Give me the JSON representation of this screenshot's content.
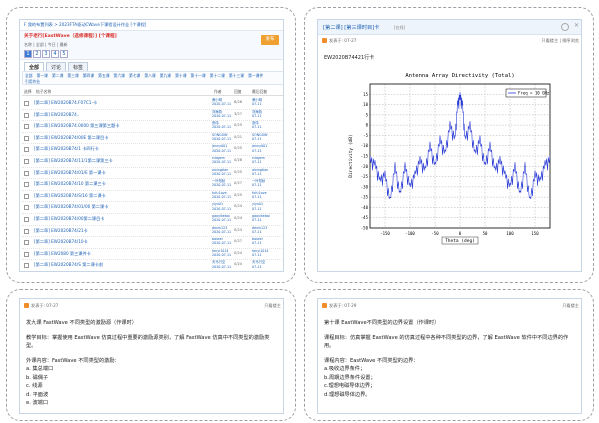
{
  "left_panel": {
    "breadcrumb": "F  我的布置列表 > 2023FTA驱动CWave下课程设计作业 [个课程]",
    "title": "关于老行[EastWave（选修课程）] [个课程]",
    "meta_line": "名称  |  全部  |  今日  |  最新",
    "pages": [
      "1",
      "2",
      "3",
      "4",
      "5"
    ],
    "publish_button": "发布",
    "tabs": [
      "全部",
      "讨论",
      "标签"
    ],
    "subtabs": [
      "全部",
      "第一课",
      "第二课",
      "第三课",
      "第四课",
      "第五课",
      "第六课",
      "第七课",
      "第八课",
      "第九课",
      "第十课",
      "第十一课",
      "第十二课",
      "第十三课",
      "第一课件",
      "引用作业"
    ],
    "columns": [
      "选择",
      "帖子名称",
      "作者",
      "回复",
      "最后回复"
    ],
    "rows": [
      {
        "title": "[第二章] EW2020B74.F07C1-卡",
        "author": "黄小明\n2020-07-11",
        "replies": "6/26",
        "last": "黄小明\n07-11"
      },
      {
        "title": "[第二章] EW2020B74..",
        "author": "刘海燕\n2020-07-11",
        "replies": "3/27",
        "last": "刘海燕\n07-11"
      },
      {
        "title": "[第二章] EW2020B74.0000 第三课第三题卡",
        "author": "张伟\n2020-07-11",
        "replies": "0/25",
        "last": "张伟\n07-11"
      },
      {
        "title": "[第二章] EW2020B74/00E 第二课目卡",
        "author": "SONGXIN\n2020-07-11",
        "replies": "0/21",
        "last": "SONGXIN\n07-11"
      },
      {
        "title": "[第二章] EW2020B74/1 卡四行卡",
        "author": "jenny001\n2020-07-11",
        "replies": "0/25",
        "last": "jenny001\n07-11"
      },
      {
        "title": "[第二章] EW2020B74/11/1第二课第三卡",
        "author": "rubgem\n2020-07-11",
        "replies": "0/28",
        "last": "rubgem\n07-11"
      },
      {
        "title": "[第二章] EW2020B74/01/E 第一课卡",
        "author": "aixingtian\n2020-07-11",
        "replies": "0/25",
        "last": "aixingtian\n07-11"
      },
      {
        "title": "[第二章] EW2020B74/10 第二课三卡",
        "author": "一叶知秋\n2020-07-11",
        "replies": "0/27",
        "last": "一叶知秋\n07-11"
      },
      {
        "title": "[第二章] EW2020B74/S/16 第二课卡",
        "author": "fufu1ove\n2020-07-11",
        "replies": "0/25",
        "last": "fufu1ove\n07-11"
      },
      {
        "title": "[第二章] EW2020B74/01/00 第二课卡",
        "author": "yiyu01\n2020-07-11",
        "replies": "0/24",
        "last": "yiyu01\n07-11"
      },
      {
        "title": "[第二章] EW2020B74/00第二课目卡",
        "author": "gaoyikebai\n2020-07-11",
        "replies": "0/24",
        "last": "gaoyikebai\n07-11"
      },
      {
        "title": "[第二章] EW2020B74/21卡",
        "author": "dexin123\n2020-07-11",
        "replies": "0/23",
        "last": "dexin123\n07-11"
      },
      {
        "title": "[第二章] EW2020B74/10卡",
        "author": "baiwei\n2020-07-11",
        "replies": "0/27",
        "last": "baiwei\n07-11"
      },
      {
        "title": "[第二章] EW2080 第三课件卡",
        "author": "fanyi1014\n2020-07-11",
        "replies": "0/24",
        "last": "fanyi1014\n07-11"
      },
      {
        "title": "[第二章] EW2020B74/S 第二课卡前",
        "author": "天马行空\n2020-07-11",
        "replies": "0/24",
        "last": "天马行空\n07-11"
      },
      {
        "title": "[第二章] EW2020B74/00第二课卡",
        "author": "小小学霸\n2020-07-11",
        "replies": "0/23",
        "last": "小小学霸\n07-11"
      }
    ]
  },
  "right_panel": {
    "title": "[第二课] [第三课时目]卡",
    "title_suffix": "[在线]",
    "post_time": "发表于: 07-27",
    "post_actions": "只看楼主  |  倒序浏览",
    "post_id": "EW2020B74421行卡",
    "chart_title": "Antenna Array Directivity (Total)",
    "legend": "Freq = 10 GHz",
    "xlabel": "Theta (deg)",
    "ylabel": "Directivity (dB)"
  },
  "chart_data": {
    "type": "line",
    "title": "Antenna Array Directivity (Total)",
    "xlabel": "Theta (deg)",
    "ylabel": "Directivity (dB)",
    "xlim": [
      -180,
      180
    ],
    "ylim": [
      -50,
      20
    ],
    "xticks": [
      -150,
      -100,
      -50,
      0,
      50,
      100,
      150
    ],
    "yticks": [
      15,
      10,
      5,
      0,
      -5,
      -10,
      -15,
      -20,
      -25,
      -30,
      -35,
      -40,
      -45,
      -50
    ],
    "legend": "Freq = 10 GHz",
    "grid": true,
    "series": [
      {
        "name": "Freq = 10 GHz",
        "color": "#2a3bd6",
        "x": [
          -180,
          -170,
          -160,
          -150,
          -140,
          -130,
          -120,
          -110,
          -100,
          -90,
          -80,
          -70,
          -60,
          -50,
          -40,
          -30,
          -20,
          -10,
          -5,
          0,
          5,
          10,
          20,
          30,
          40,
          50,
          60,
          70,
          80,
          90,
          100,
          110,
          120,
          130,
          140,
          150,
          160,
          170,
          180
        ],
        "y": [
          -15,
          -17,
          -25,
          -22,
          -35,
          -18,
          -32,
          -18,
          -28,
          -22,
          -15,
          -20,
          -8,
          -18,
          -5,
          -12,
          2,
          -5,
          12,
          16,
          12,
          -5,
          2,
          -12,
          -5,
          -18,
          -8,
          -20,
          -15,
          -22,
          -28,
          -18,
          -32,
          -18,
          -35,
          -22,
          -25,
          -17,
          -15
        ]
      }
    ]
  },
  "bottom_left": {
    "post_time": "发表于: 07-27",
    "post_action": "只看楼主",
    "lines": [
      "发九课 FastWave 不同类型的激励源（作课时）",
      "",
      "教学目标：掌握使用 EastWave 仿真过程中重要的激励源类别，了解 FastWave 仿真中不同类型的激励类型。",
      "",
      "外课内容：FastWave 不同类型的激励：",
      "a. 集总端口",
      "b. 磁偶子",
      "c. 线源",
      "d. 平面波",
      "e. 波端口"
    ]
  },
  "bottom_right": {
    "post_time": "发表于: 07-29",
    "post_action": "只看楼主",
    "lines": [
      "第十课 EastWave不同类型的边界设置（作课时）",
      "",
      "课程目标：仿真掌握 EastWave 的仿真过程中各种不同类型的边界，了解 EastWave 软件中不同边界的作用。",
      "",
      "课程内容：EastWave 不同类型的边界：",
      "a.吸收边界条件；",
      "b.周期边界条件设置；",
      "c.理想电磁导体边界；",
      "d.理想磁导体边界。"
    ]
  }
}
